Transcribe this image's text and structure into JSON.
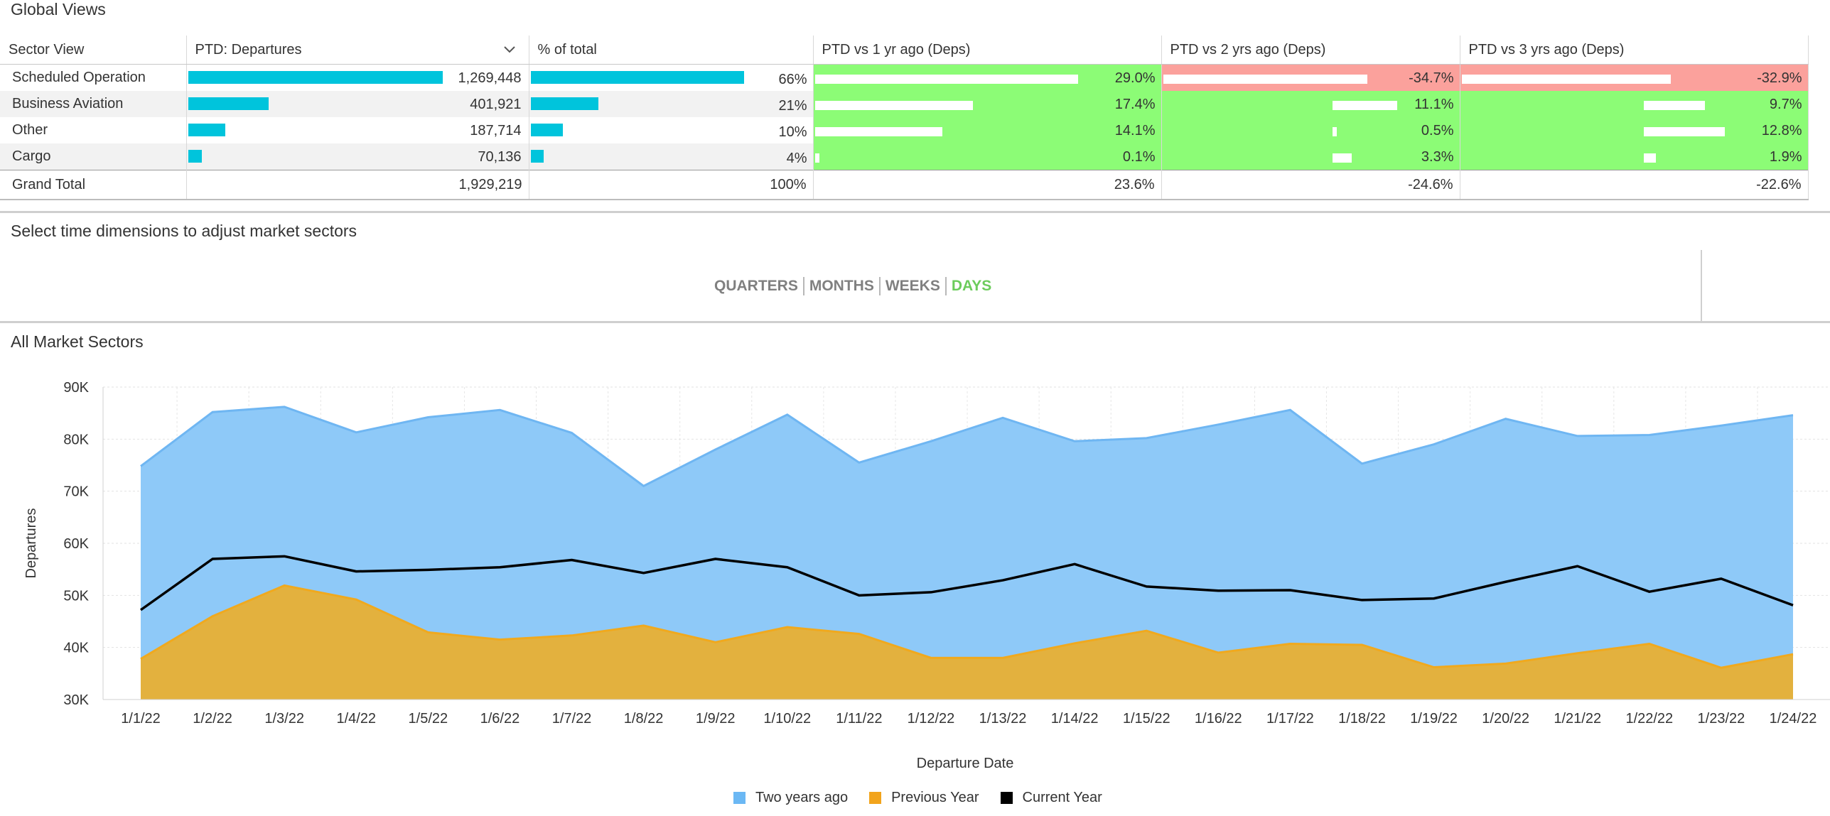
{
  "global_views": {
    "title": "Global Views",
    "headers": {
      "sector": "Sector View",
      "departures": "PTD: Departures",
      "pct_total": "% of total",
      "vs1": "PTD vs 1 yr ago (Deps)",
      "vs2": "PTD vs 2 yrs ago (Deps)",
      "vs3": "PTD vs 3 yrs ago (Deps)"
    },
    "rows": [
      {
        "label": "Scheduled Operation",
        "departures": "1,269,448",
        "departures_value": 1269448,
        "pct": "66%",
        "pct_value": 66,
        "vs1": "29.0%",
        "vs1_value": 29.0,
        "vs2": "-34.7%",
        "vs2_value": -34.7,
        "vs3": "-32.9%",
        "vs3_value": -32.9
      },
      {
        "label": "Business Aviation",
        "departures": "401,921",
        "departures_value": 401921,
        "pct": "21%",
        "pct_value": 21,
        "vs1": "17.4%",
        "vs1_value": 17.4,
        "vs2": "11.1%",
        "vs2_value": 11.1,
        "vs3": "9.7%",
        "vs3_value": 9.7
      },
      {
        "label": "Other",
        "departures": "187,714",
        "departures_value": 187714,
        "pct": "10%",
        "pct_value": 10,
        "vs1": "14.1%",
        "vs1_value": 14.1,
        "vs2": "0.5%",
        "vs2_value": 0.5,
        "vs3": "12.8%",
        "vs3_value": 12.8
      },
      {
        "label": "Cargo",
        "departures": "70,136",
        "departures_value": 70136,
        "pct": "4%",
        "pct_value": 4,
        "vs1": "0.1%",
        "vs1_value": 0.1,
        "vs2": "3.3%",
        "vs2_value": 3.3,
        "vs3": "1.9%",
        "vs3_value": 1.9
      }
    ],
    "total": {
      "label": "Grand Total",
      "departures": "1,929,219",
      "pct": "100%",
      "vs1": "23.6%",
      "vs2": "-24.6%",
      "vs3": "-22.6%"
    },
    "colors": {
      "bar": "#00c4dc",
      "positive": "#8cfc76",
      "negative": "#fba19c"
    }
  },
  "time_selector": {
    "title": "Select time dimensions to adjust market sectors",
    "options": [
      "QUARTERS",
      "MONTHS",
      "WEEKS",
      "DAYS"
    ],
    "active": "DAYS"
  },
  "market_sectors": {
    "title": "All Market Sectors"
  },
  "chart_data": {
    "type": "area",
    "title": "",
    "xlabel": "Departure Date",
    "ylabel": "Departures",
    "ylim": [
      30000,
      90000
    ],
    "yticks": [
      "30K",
      "40K",
      "50K",
      "60K",
      "70K",
      "80K",
      "90K"
    ],
    "grid": true,
    "legend_position": "bottom",
    "categories": [
      "1/1/22",
      "1/2/22",
      "1/3/22",
      "1/4/22",
      "1/5/22",
      "1/6/22",
      "1/7/22",
      "1/8/22",
      "1/9/22",
      "1/10/22",
      "1/11/22",
      "1/12/22",
      "1/13/22",
      "1/14/22",
      "1/15/22",
      "1/16/22",
      "1/17/22",
      "1/18/22",
      "1/19/22",
      "1/20/22",
      "1/21/22",
      "1/22/22",
      "1/23/22",
      "1/24/22"
    ],
    "series": [
      {
        "name": "Two years ago",
        "kind": "area",
        "color": "#8ec9f8",
        "stroke": "#6fb6f2",
        "legend_color": "#6bb8f4",
        "values": [
          74800,
          85200,
          86200,
          81300,
          84200,
          85600,
          81200,
          71000,
          78000,
          84700,
          75500,
          79600,
          84100,
          79600,
          80200,
          82800,
          85600,
          75300,
          79000,
          83900,
          80600,
          80800,
          82600,
          84600
        ]
      },
      {
        "name": "Previous Year",
        "kind": "area",
        "color": "#e3b13e",
        "stroke": "#f0a91e",
        "legend_color": "#f2a41c",
        "values": [
          37800,
          46000,
          51900,
          49200,
          42900,
          41500,
          42300,
          44200,
          41000,
          43900,
          42600,
          38000,
          38000,
          40800,
          43200,
          39000,
          40700,
          40500,
          36200,
          36900,
          38900,
          40700,
          36100,
          38700
        ]
      },
      {
        "name": "Current Year",
        "kind": "line",
        "color": "#000000",
        "values": [
          47200,
          57000,
          57500,
          54600,
          54900,
          55400,
          56800,
          54300,
          57000,
          55400,
          50000,
          50600,
          52900,
          56000,
          51700,
          50900,
          51000,
          49100,
          49400,
          52600,
          55600,
          50700,
          53200,
          48100
        ]
      }
    ]
  }
}
